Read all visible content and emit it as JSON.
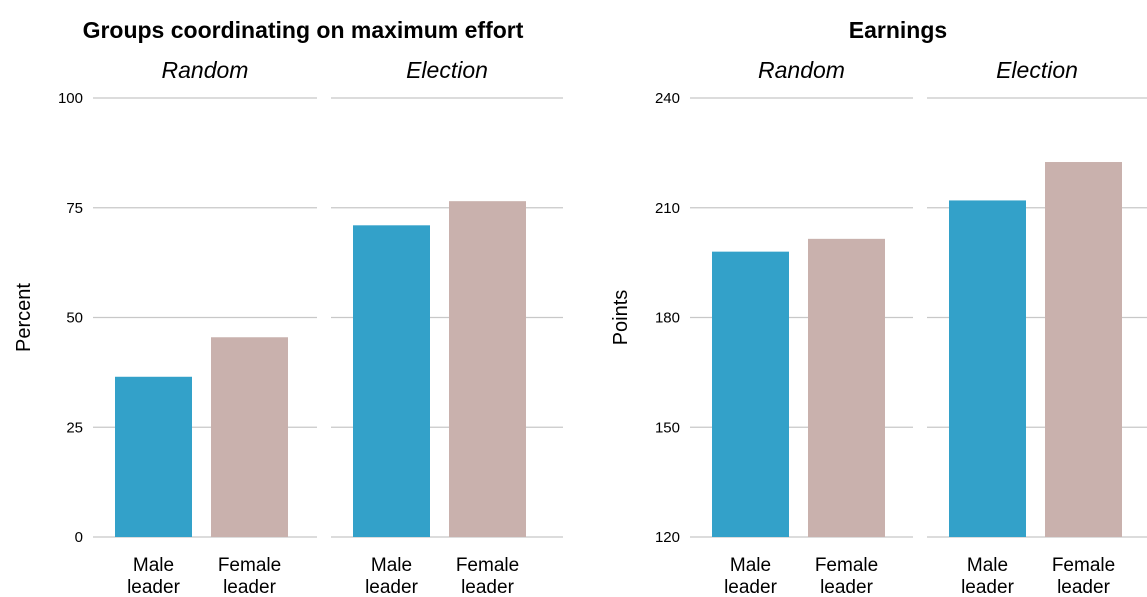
{
  "chart_data": [
    {
      "type": "bar",
      "title": "Groups coordinating on maximum effort",
      "ylabel": "Percent",
      "xlabel": "",
      "ylim": [
        0,
        100
      ],
      "yticks": [
        "0",
        "25",
        "50",
        "75",
        "100"
      ],
      "facets": [
        "Random",
        "Election"
      ],
      "categories": [
        "Male\nleader",
        "Female\nleader"
      ],
      "series": [
        {
          "facet": "Random",
          "values": [
            36.5,
            45.5
          ]
        },
        {
          "facet": "Election",
          "values": [
            71,
            76.5
          ]
        }
      ],
      "colors": [
        "#33a1c9",
        "#c9b1ad"
      ],
      "grid": true
    },
    {
      "type": "bar",
      "title": "Earnings",
      "ylabel": "Points",
      "xlabel": "",
      "ylim": [
        120,
        240
      ],
      "yticks": [
        "120",
        "150",
        "180",
        "210",
        "240"
      ],
      "facets": [
        "Random",
        "Election"
      ],
      "categories": [
        "Male\nleader",
        "Female\nleader"
      ],
      "series": [
        {
          "facet": "Random",
          "values": [
            198,
            201.5
          ]
        },
        {
          "facet": "Election",
          "values": [
            212,
            222.5
          ]
        }
      ],
      "colors": [
        "#33a1c9",
        "#c9b1ad"
      ],
      "grid": true
    }
  ]
}
